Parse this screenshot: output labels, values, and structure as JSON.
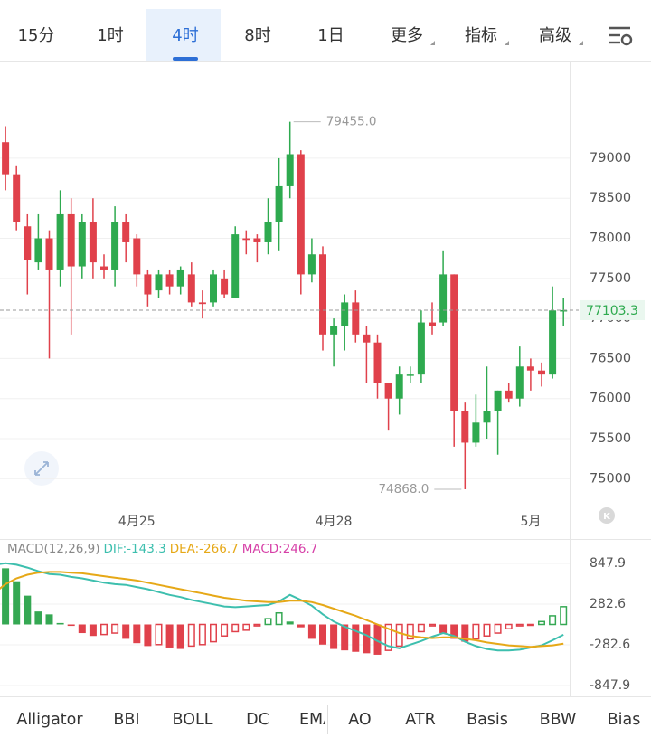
{
  "tabs": [
    "15分",
    "1时",
    "4时",
    "8时",
    "1日",
    "更多",
    "指标",
    "高级"
  ],
  "active_tab": 2,
  "menu_tabs": [
    5,
    6,
    7
  ],
  "chart_data": [
    {
      "type": "candlestick",
      "categories": [
        null,
        null,
        null,
        null,
        null,
        null,
        null,
        null,
        null,
        null,
        null,
        null,
        null,
        "4月25",
        null,
        null,
        null,
        null,
        null,
        null,
        null,
        null,
        null,
        null,
        null,
        null,
        null,
        null,
        null,
        null,
        null,
        "4月28",
        null,
        null,
        null,
        null,
        null,
        null,
        null,
        null,
        null,
        null,
        null,
        null,
        null,
        null,
        null,
        null,
        null,
        "5月",
        null,
        null,
        null
      ],
      "open": [
        78300,
        79200,
        78800,
        78150,
        77700,
        78000,
        77600,
        78300,
        77650,
        78200,
        77650,
        77600,
        78200,
        78000,
        77550,
        77350,
        77550,
        77400,
        77550,
        77200,
        77200,
        77500,
        77250,
        78000,
        78000,
        77950,
        78200,
        78650,
        79050,
        77550,
        77800,
        76800,
        76900,
        77200,
        76800,
        76700,
        76200,
        76000,
        76300,
        76300,
        76950,
        76950,
        77550,
        75850,
        75450,
        75700,
        75850,
        76100,
        76000,
        76400,
        76350,
        76300,
        77100
      ],
      "close": [
        79000,
        78800,
        78200,
        77730,
        78000,
        77600,
        78300,
        77650,
        78200,
        77700,
        77600,
        78200,
        77950,
        77550,
        77300,
        77550,
        77400,
        77600,
        77200,
        77180,
        77550,
        77300,
        78050,
        77980,
        77950,
        78200,
        78650,
        79050,
        77550,
        77800,
        76800,
        76900,
        77200,
        76800,
        76700,
        76200,
        76000,
        76300,
        76300,
        76950,
        76900,
        77550,
        75850,
        75450,
        75700,
        75850,
        76100,
        76000,
        76400,
        76350,
        76300,
        77100,
        77103.3
      ],
      "high": [
        79100,
        79400,
        78900,
        78300,
        78300,
        78100,
        78600,
        78500,
        78300,
        78500,
        77800,
        78400,
        78300,
        78050,
        77600,
        77600,
        77600,
        77650,
        77700,
        77350,
        77600,
        77600,
        78150,
        78100,
        78050,
        78500,
        79000,
        79455,
        79100,
        78000,
        77900,
        77000,
        77300,
        77350,
        76900,
        76800,
        76200,
        76400,
        76400,
        77100,
        77200,
        77850,
        77550,
        75950,
        76050,
        76400,
        76100,
        76200,
        76650,
        76500,
        76450,
        77400,
        77250
      ],
      "low": [
        78200,
        78600,
        78100,
        77300,
        77600,
        76500,
        77400,
        76800,
        77500,
        77500,
        77500,
        77400,
        77700,
        77400,
        77150,
        77250,
        77300,
        77300,
        77150,
        77000,
        77150,
        77250,
        77250,
        77800,
        77700,
        77800,
        77850,
        78500,
        77300,
        77450,
        76600,
        76400,
        76600,
        76700,
        76200,
        76000,
        75600,
        75800,
        76200,
        76200,
        76800,
        76900,
        75400,
        74868,
        75400,
        75500,
        75300,
        75950,
        75900,
        76100,
        76150,
        76250,
        76900
      ],
      "up_color": "#2eaa4f",
      "down_color": "#e0414b",
      "ylim": [
        74710,
        80207
      ],
      "yticks": [
        75000,
        75500,
        76000,
        76500,
        77000,
        77500,
        78000,
        78500,
        79000
      ],
      "grid": true,
      "annotations": [
        {
          "value": 79455,
          "label": "79455.0"
        },
        {
          "value": 74868,
          "label": "74868.0"
        }
      ],
      "current_price": {
        "value": 77103.3,
        "label": "77103.3"
      }
    },
    {
      "type": "macd",
      "title": "MACD(12,26,9)",
      "series": [
        {
          "name": "DIF:-143.3",
          "color": "#3dbfae",
          "kind": "line",
          "values": [
            830,
            850,
            830,
            790,
            740,
            700,
            690,
            660,
            640,
            610,
            580,
            560,
            550,
            520,
            490,
            450,
            410,
            380,
            340,
            310,
            280,
            250,
            240,
            250,
            260,
            270,
            320,
            410,
            340,
            260,
            140,
            40,
            -30,
            -90,
            -150,
            -230,
            -300,
            -330,
            -280,
            -230,
            -170,
            -120,
            -160,
            -240,
            -300,
            -340,
            -360,
            -360,
            -350,
            -320,
            -290,
            -220,
            -143.3
          ]
        },
        {
          "name": "DEA:-266.7",
          "color": "#e6a817",
          "kind": "line",
          "values": [
            440,
            560,
            640,
            690,
            720,
            730,
            730,
            720,
            710,
            690,
            670,
            650,
            630,
            610,
            580,
            550,
            520,
            490,
            460,
            430,
            400,
            370,
            350,
            330,
            320,
            310,
            310,
            330,
            330,
            310,
            270,
            220,
            170,
            120,
            60,
            0,
            -60,
            -120,
            -160,
            -180,
            -190,
            -180,
            -180,
            -200,
            -220,
            -250,
            -270,
            -290,
            -300,
            -310,
            -300,
            -290,
            -266.7
          ]
        },
        {
          "name": "MACD:246.7",
          "color": "#d63fa7",
          "kind": "histogram",
          "values": [
            860,
            780,
            600,
            400,
            180,
            140,
            20,
            -20,
            -120,
            -160,
            -140,
            -120,
            -200,
            -260,
            -300,
            -280,
            -320,
            -340,
            -300,
            -280,
            -240,
            -160,
            -100,
            -80,
            -20,
            80,
            160,
            40,
            -40,
            -200,
            -280,
            -340,
            -360,
            -380,
            -400,
            -420,
            -360,
            -300,
            -200,
            -100,
            -20,
            -120,
            -200,
            -240,
            -200,
            -160,
            -120,
            -60,
            -20,
            -10,
            40,
            120,
            246.7
          ]
        }
      ],
      "up_color": "#35a853",
      "down_color": "#e0414b",
      "ylim": [
        -998.5,
        1174
      ],
      "yticks": [
        -847.9,
        -282.6,
        282.6,
        847.9
      ],
      "grid": true
    }
  ],
  "indicator_tabs": [
    "Alligator",
    "BBI",
    "BOLL",
    "DC",
    "EMA",
    "AO",
    "ATR",
    "Basis",
    "BBW",
    "Bias"
  ]
}
